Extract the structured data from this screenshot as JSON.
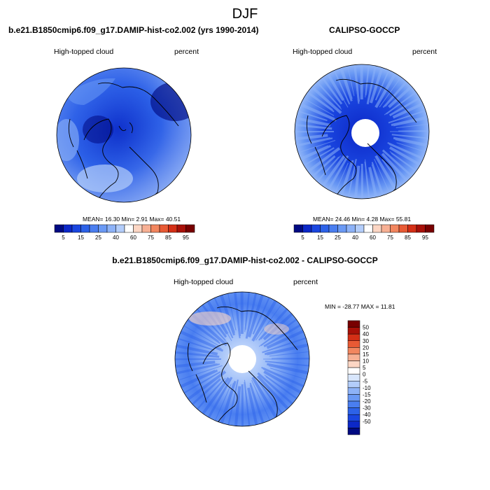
{
  "figure": {
    "season": "DJF",
    "colors": {
      "palette": [
        "#000a82",
        "#0c28c8",
        "#1a46e0",
        "#2d62e8",
        "#4a7ef0",
        "#6a99f4",
        "#8db2f7",
        "#b3cdfa",
        "#ffffff",
        "#fcd6c4",
        "#f7b094",
        "#f2865f",
        "#e85a34",
        "#d42f16",
        "#a81008",
        "#780000"
      ],
      "diff_palette": [
        "#000a82",
        "#0c28c8",
        "#1a46e0",
        "#2d62e8",
        "#4a7ef0",
        "#6a99f4",
        "#8db2f7",
        "#b3cdfa",
        "#d8e6fc",
        "#ffffff",
        "#fcd6c4",
        "#f7b094",
        "#f2865f",
        "#e85a34",
        "#d42f16",
        "#a81008",
        "#780000"
      ],
      "coastline": "#000000"
    }
  },
  "chart_data": [
    {
      "type": "heatmap",
      "projection": "polar-stereographic",
      "title": "b.e21.B1850cmip6.f09_g17.DAMIP-hist-co2.002 (yrs 1990-2014)",
      "variable": "High-topped cloud",
      "units": "percent",
      "stats": {
        "mean": "16.30",
        "min": "2.91",
        "max": "40.51",
        "text": "MEAN=  16.30  Min=   2.91  Max=  40.51"
      },
      "levels": [
        5,
        10,
        15,
        20,
        25,
        30,
        35,
        40,
        45,
        50,
        60,
        70,
        75,
        80,
        85,
        90,
        95
      ],
      "tick_labels": [
        "5",
        "15",
        "25",
        "40",
        "60",
        "75",
        "85",
        "95"
      ]
    },
    {
      "type": "heatmap",
      "projection": "polar-stereographic",
      "title": "CALIPSO-GOCCP",
      "variable": "High-topped cloud",
      "units": "percent",
      "stats": {
        "mean": "24.46",
        "min": "4.28",
        "max": "55.81",
        "text": "MEAN=  24.46  Min=   4.28  Max=  55.81"
      },
      "levels": [
        5,
        10,
        15,
        20,
        25,
        30,
        35,
        40,
        45,
        50,
        60,
        70,
        75,
        80,
        85,
        90,
        95
      ],
      "tick_labels": [
        "5",
        "15",
        "25",
        "40",
        "60",
        "75",
        "85",
        "95"
      ],
      "missing_region": "polar cap (no data poleward of ~82N)"
    },
    {
      "type": "heatmap",
      "projection": "polar-stereographic",
      "title": "b.e21.B1850cmip6.f09_g17.DAMIP-hist-co2.002 - CALIPSO-GOCCP",
      "variable": "High-topped cloud",
      "units": "percent",
      "stats": {
        "min": "-28.77",
        "max": "11.81",
        "text": "MIN = -28.77  MAX =  11.81"
      },
      "levels": [
        50,
        40,
        30,
        20,
        15,
        10,
        5,
        0,
        -5,
        -10,
        -15,
        -20,
        -30,
        -40,
        -50
      ],
      "tick_labels": [
        "50",
        "40",
        "30",
        "20",
        "15",
        "10",
        "5",
        "0",
        "-5",
        "-10",
        "-15",
        "-20",
        "-30",
        "-40",
        "-50"
      ],
      "missing_region": "polar cap"
    }
  ]
}
